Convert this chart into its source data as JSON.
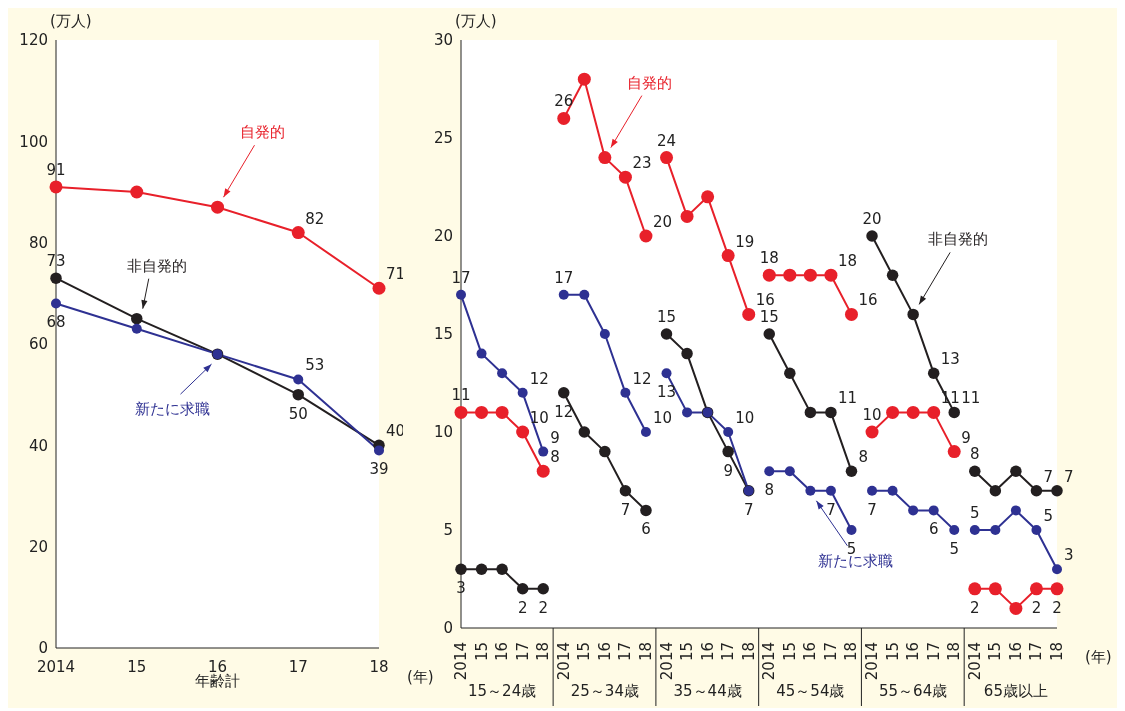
{
  "chart_data": [
    {
      "type": "line",
      "ylabel": "(万人)",
      "xlabel": "年齢計",
      "categories": [
        "2014",
        "15",
        "16",
        "17",
        "18"
      ],
      "ylim": [
        0,
        120
      ],
      "yticks": [
        0,
        20,
        40,
        60,
        80,
        100,
        120
      ],
      "marker": "circle",
      "line_style": "solid",
      "annotations": [
        "(年)"
      ],
      "series": [
        {
          "name": "自発的",
          "color": "#e8202a",
          "values": [
            91,
            90,
            87,
            82,
            71
          ],
          "value_labels": [
            "91",
            null,
            null,
            "82",
            "71"
          ]
        },
        {
          "name": "非自発的",
          "color": "#231f20",
          "values": [
            73,
            65,
            58,
            50,
            40
          ],
          "value_labels": [
            "73",
            null,
            null,
            "50",
            "40"
          ]
        },
        {
          "name": "新たに求職",
          "color": "#2e3192",
          "values": [
            68,
            63,
            58,
            53,
            39
          ],
          "value_labels": [
            "68",
            null,
            null,
            "53",
            "39"
          ]
        }
      ]
    },
    {
      "type": "line",
      "ylabel": "(万人)",
      "categories": [
        "2014",
        "15",
        "16",
        "17",
        "18",
        "2014",
        "15",
        "16",
        "17",
        "18",
        "2014",
        "15",
        "16",
        "17",
        "18",
        "2014",
        "15",
        "16",
        "17",
        "18",
        "2014",
        "15",
        "16",
        "17",
        "18",
        "2014",
        "15",
        "16",
        "17",
        "18"
      ],
      "ylim": [
        0,
        30
      ],
      "yticks": [
        0,
        5,
        10,
        15,
        20,
        25,
        30
      ],
      "marker": "circle",
      "line_style": "solid",
      "annotations": [
        "15～24歳",
        "25～34歳",
        "35～44歳",
        "45～54歳",
        "55～64歳",
        "65歳以上",
        "(年)"
      ],
      "series": [
        {
          "color": "#e8202a",
          "values": [
            11,
            11,
            11,
            10,
            8,
            null,
            null,
            null,
            null,
            null,
            null,
            null,
            null,
            null,
            null,
            null,
            null,
            null,
            null,
            null,
            null,
            null,
            null,
            null,
            null,
            null,
            null,
            null,
            null,
            null
          ],
          "value_labels": [
            "11",
            null,
            null,
            "10",
            "8",
            null,
            null,
            null,
            null,
            null,
            null,
            null,
            null,
            null,
            null,
            null,
            null,
            null,
            null,
            null,
            null,
            null,
            null,
            null,
            null,
            null,
            null,
            null,
            null,
            null
          ]
        },
        {
          "color": "#231f20",
          "values": [
            3,
            3,
            3,
            2,
            2,
            null,
            null,
            null,
            null,
            null,
            null,
            null,
            null,
            null,
            null,
            null,
            null,
            null,
            null,
            null,
            null,
            null,
            null,
            null,
            null,
            null,
            null,
            null,
            null,
            null
          ],
          "value_labels": [
            "3",
            null,
            null,
            "2",
            "2",
            null,
            null,
            null,
            null,
            null,
            null,
            null,
            null,
            null,
            null,
            null,
            null,
            null,
            null,
            null,
            null,
            null,
            null,
            null,
            null,
            null,
            null,
            null,
            null,
            null
          ]
        },
        {
          "color": "#2e3192",
          "values": [
            17,
            14,
            13,
            12,
            9,
            null,
            null,
            null,
            null,
            null,
            null,
            null,
            null,
            null,
            null,
            null,
            null,
            null,
            null,
            null,
            null,
            null,
            null,
            null,
            null,
            null,
            null,
            null,
            null,
            null
          ],
          "value_labels": [
            "17",
            null,
            null,
            "12",
            "9",
            null,
            null,
            null,
            null,
            null,
            null,
            null,
            null,
            null,
            null,
            null,
            null,
            null,
            null,
            null,
            null,
            null,
            null,
            null,
            null,
            null,
            null,
            null,
            null,
            null
          ]
        },
        {
          "name": "自発的",
          "color": "#e8202a",
          "values": [
            null,
            null,
            null,
            null,
            null,
            26,
            28,
            24,
            23,
            20,
            null,
            null,
            null,
            null,
            null,
            null,
            null,
            null,
            null,
            null,
            null,
            null,
            null,
            null,
            null,
            null,
            null,
            null,
            null,
            null
          ],
          "value_labels": [
            null,
            null,
            null,
            null,
            null,
            "26",
            null,
            null,
            "23",
            "20",
            null,
            null,
            null,
            null,
            null,
            null,
            null,
            null,
            null,
            null,
            null,
            null,
            null,
            null,
            null,
            null,
            null,
            null,
            null,
            null
          ]
        },
        {
          "color": "#231f20",
          "values": [
            null,
            null,
            null,
            null,
            null,
            12,
            10,
            9,
            7,
            6,
            null,
            null,
            null,
            null,
            null,
            null,
            null,
            null,
            null,
            null,
            null,
            null,
            null,
            null,
            null,
            null,
            null,
            null,
            null,
            null
          ],
          "value_labels": [
            null,
            null,
            null,
            null,
            null,
            "12",
            null,
            null,
            "7",
            "6",
            null,
            null,
            null,
            null,
            null,
            null,
            null,
            null,
            null,
            null,
            null,
            null,
            null,
            null,
            null,
            null,
            null,
            null,
            null,
            null
          ]
        },
        {
          "color": "#2e3192",
          "values": [
            null,
            null,
            null,
            null,
            null,
            17,
            17,
            15,
            12,
            10,
            null,
            null,
            null,
            null,
            null,
            null,
            null,
            null,
            null,
            null,
            null,
            null,
            null,
            null,
            null,
            null,
            null,
            null,
            null,
            null
          ],
          "value_labels": [
            null,
            null,
            null,
            null,
            null,
            "17",
            null,
            null,
            "12",
            "10",
            null,
            null,
            null,
            null,
            null,
            null,
            null,
            null,
            null,
            null,
            null,
            null,
            null,
            null,
            null,
            null,
            null,
            null,
            null,
            null
          ]
        },
        {
          "color": "#e8202a",
          "values": [
            null,
            null,
            null,
            null,
            null,
            null,
            null,
            null,
            null,
            null,
            24,
            21,
            22,
            19,
            16,
            null,
            null,
            null,
            null,
            null,
            null,
            null,
            null,
            null,
            null,
            null,
            null,
            null,
            null,
            null
          ],
          "value_labels": [
            null,
            null,
            null,
            null,
            null,
            null,
            null,
            null,
            null,
            null,
            "24",
            null,
            null,
            "19",
            "16",
            null,
            null,
            null,
            null,
            null,
            null,
            null,
            null,
            null,
            null,
            null,
            null,
            null,
            null,
            null
          ]
        },
        {
          "color": "#231f20",
          "values": [
            null,
            null,
            null,
            null,
            null,
            null,
            null,
            null,
            null,
            null,
            15,
            14,
            11,
            9,
            7,
            null,
            null,
            null,
            null,
            null,
            null,
            null,
            null,
            null,
            null,
            null,
            null,
            null,
            null,
            null
          ],
          "value_labels": [
            null,
            null,
            null,
            null,
            null,
            null,
            null,
            null,
            null,
            null,
            "15",
            null,
            null,
            "9",
            "7",
            null,
            null,
            null,
            null,
            null,
            null,
            null,
            null,
            null,
            null,
            null,
            null,
            null,
            null,
            null
          ]
        },
        {
          "color": "#2e3192",
          "values": [
            null,
            null,
            null,
            null,
            null,
            null,
            null,
            null,
            null,
            null,
            13,
            11,
            11,
            10,
            7,
            null,
            null,
            null,
            null,
            null,
            null,
            null,
            null,
            null,
            null,
            null,
            null,
            null,
            null,
            null
          ],
          "value_labels": [
            null,
            null,
            null,
            null,
            null,
            null,
            null,
            null,
            null,
            null,
            "13",
            null,
            null,
            "10",
            null,
            null,
            null,
            null,
            null,
            null,
            null,
            null,
            null,
            null,
            null,
            null,
            null,
            null,
            null,
            null
          ]
        },
        {
          "color": "#e8202a",
          "values": [
            null,
            null,
            null,
            null,
            null,
            null,
            null,
            null,
            null,
            null,
            null,
            null,
            null,
            null,
            null,
            18,
            18,
            18,
            18,
            16,
            null,
            null,
            null,
            null,
            null,
            null,
            null,
            null,
            null,
            null
          ],
          "value_labels": [
            null,
            null,
            null,
            null,
            null,
            null,
            null,
            null,
            null,
            null,
            null,
            null,
            null,
            null,
            null,
            "18",
            null,
            null,
            "18",
            "16",
            null,
            null,
            null,
            null,
            null,
            null,
            null,
            null,
            null,
            null
          ]
        },
        {
          "color": "#231f20",
          "values": [
            null,
            null,
            null,
            null,
            null,
            null,
            null,
            null,
            null,
            null,
            null,
            null,
            null,
            null,
            null,
            15,
            13,
            11,
            11,
            8,
            null,
            null,
            null,
            null,
            null,
            null,
            null,
            null,
            null,
            null
          ],
          "value_labels": [
            null,
            null,
            null,
            null,
            null,
            null,
            null,
            null,
            null,
            null,
            null,
            null,
            null,
            null,
            null,
            "15",
            null,
            null,
            "11",
            "8",
            null,
            null,
            null,
            null,
            null,
            null,
            null,
            null,
            null,
            null
          ]
        },
        {
          "name": "新たに求職",
          "color": "#2e3192",
          "values": [
            null,
            null,
            null,
            null,
            null,
            null,
            null,
            null,
            null,
            null,
            null,
            null,
            null,
            null,
            null,
            8,
            8,
            7,
            7,
            5,
            null,
            null,
            null,
            null,
            null,
            null,
            null,
            null,
            null,
            null
          ],
          "value_labels": [
            null,
            null,
            null,
            null,
            null,
            null,
            null,
            null,
            null,
            null,
            null,
            null,
            null,
            null,
            null,
            "8",
            null,
            null,
            "7",
            "5",
            null,
            null,
            null,
            null,
            null,
            null,
            null,
            null,
            null,
            null
          ]
        },
        {
          "color": "#e8202a",
          "values": [
            null,
            null,
            null,
            null,
            null,
            null,
            null,
            null,
            null,
            null,
            null,
            null,
            null,
            null,
            null,
            null,
            null,
            null,
            null,
            null,
            10,
            11,
            11,
            11,
            9,
            null,
            null,
            null,
            null,
            null
          ],
          "value_labels": [
            null,
            null,
            null,
            null,
            null,
            null,
            null,
            null,
            null,
            null,
            null,
            null,
            null,
            null,
            null,
            null,
            null,
            null,
            null,
            null,
            "10",
            null,
            null,
            "11",
            "9",
            null,
            null,
            null,
            null,
            null
          ]
        },
        {
          "name": "非自発的",
          "color": "#231f20",
          "values": [
            null,
            null,
            null,
            null,
            null,
            null,
            null,
            null,
            null,
            null,
            null,
            null,
            null,
            null,
            null,
            null,
            null,
            null,
            null,
            null,
            20,
            18,
            16,
            13,
            11,
            null,
            null,
            null,
            null,
            null
          ],
          "value_labels": [
            null,
            null,
            null,
            null,
            null,
            null,
            null,
            null,
            null,
            null,
            null,
            null,
            null,
            null,
            null,
            null,
            null,
            null,
            null,
            null,
            "20",
            null,
            null,
            "13",
            "11",
            null,
            null,
            null,
            null,
            null
          ]
        },
        {
          "color": "#2e3192",
          "values": [
            null,
            null,
            null,
            null,
            null,
            null,
            null,
            null,
            null,
            null,
            null,
            null,
            null,
            null,
            null,
            null,
            null,
            null,
            null,
            null,
            7,
            7,
            6,
            6,
            5,
            null,
            null,
            null,
            null,
            null
          ],
          "value_labels": [
            null,
            null,
            null,
            null,
            null,
            null,
            null,
            null,
            null,
            null,
            null,
            null,
            null,
            null,
            null,
            null,
            null,
            null,
            null,
            null,
            "7",
            null,
            null,
            "6",
            "5",
            null,
            null,
            null,
            null,
            null
          ]
        },
        {
          "color": "#e8202a",
          "values": [
            null,
            null,
            null,
            null,
            null,
            null,
            null,
            null,
            null,
            null,
            null,
            null,
            null,
            null,
            null,
            null,
            null,
            null,
            null,
            null,
            null,
            null,
            null,
            null,
            null,
            2,
            2,
            1,
            2,
            2
          ],
          "value_labels": [
            null,
            null,
            null,
            null,
            null,
            null,
            null,
            null,
            null,
            null,
            null,
            null,
            null,
            null,
            null,
            null,
            null,
            null,
            null,
            null,
            null,
            null,
            null,
            null,
            null,
            "2",
            null,
            null,
            "2",
            "2"
          ]
        },
        {
          "color": "#231f20",
          "values": [
            null,
            null,
            null,
            null,
            null,
            null,
            null,
            null,
            null,
            null,
            null,
            null,
            null,
            null,
            null,
            null,
            null,
            null,
            null,
            null,
            null,
            null,
            null,
            null,
            null,
            8,
            7,
            8,
            7,
            7
          ],
          "value_labels": [
            null,
            null,
            null,
            null,
            null,
            null,
            null,
            null,
            null,
            null,
            null,
            null,
            null,
            null,
            null,
            null,
            null,
            null,
            null,
            null,
            null,
            null,
            null,
            null,
            null,
            "8",
            null,
            null,
            "7",
            "7"
          ]
        },
        {
          "color": "#2e3192",
          "values": [
            null,
            null,
            null,
            null,
            null,
            null,
            null,
            null,
            null,
            null,
            null,
            null,
            null,
            null,
            null,
            null,
            null,
            null,
            null,
            null,
            null,
            null,
            null,
            null,
            null,
            5,
            5,
            6,
            5,
            3
          ],
          "value_labels": [
            null,
            null,
            null,
            null,
            null,
            null,
            null,
            null,
            null,
            null,
            null,
            null,
            null,
            null,
            null,
            null,
            null,
            null,
            null,
            null,
            null,
            null,
            null,
            null,
            null,
            "5",
            null,
            null,
            "5",
            "3"
          ]
        }
      ]
    }
  ]
}
